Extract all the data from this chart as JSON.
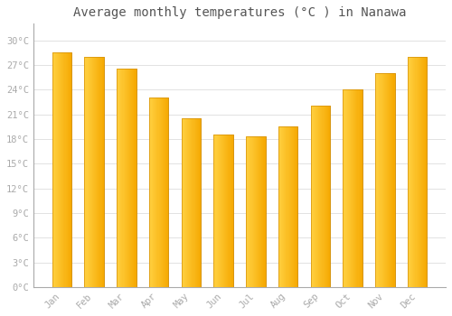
{
  "months": [
    "Jan",
    "Feb",
    "Mar",
    "Apr",
    "May",
    "Jun",
    "Jul",
    "Aug",
    "Sep",
    "Oct",
    "Nov",
    "Dec"
  ],
  "values": [
    28.5,
    28.0,
    26.5,
    23.0,
    20.5,
    18.5,
    18.3,
    19.5,
    22.0,
    24.0,
    26.0,
    28.0
  ],
  "bar_color_left": "#FFD040",
  "bar_color_right": "#F5A800",
  "bar_edge_color": "#D4900A",
  "background_color": "#FFFFFF",
  "grid_color": "#DDDDDD",
  "title": "Average monthly temperatures (°C ) in Nanawa",
  "title_fontsize": 10,
  "tick_label_color": "#AAAAAA",
  "title_color": "#555555",
  "ylim": [
    0,
    32
  ],
  "yticks": [
    0,
    3,
    6,
    9,
    12,
    15,
    18,
    21,
    24,
    27,
    30
  ],
  "ytick_labels": [
    "0°C",
    "3°C",
    "6°C",
    "9°C",
    "12°C",
    "15°C",
    "18°C",
    "21°C",
    "24°C",
    "27°C",
    "30°C"
  ]
}
